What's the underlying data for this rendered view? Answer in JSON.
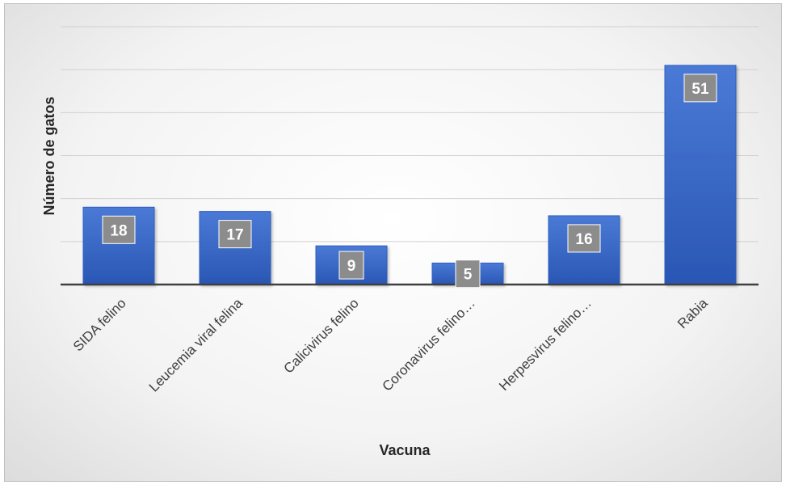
{
  "chart_data": {
    "type": "bar",
    "title": "",
    "xlabel": "Vacuna",
    "ylabel": "Número de gatos",
    "categories": [
      "SIDA felino",
      "Leucemia viral felina",
      "Calicivirus felino",
      "Coronavirus felino…",
      "Herpesvirus felino…",
      "Rabia"
    ],
    "values": [
      18,
      17,
      9,
      5,
      16,
      51
    ],
    "ylim": [
      0,
      60
    ],
    "gridlines": [
      0,
      10,
      20,
      30,
      40,
      50,
      60
    ],
    "grid": true,
    "legend": "none",
    "y_tick_labels_visible": false,
    "colors": {
      "bar_top": "#4a7ad6",
      "bar_bottom": "#2a56b4",
      "bar_edge": "#2f5fbf",
      "label_box": "#8c8c8c",
      "grid": "#d0d0d0",
      "axis": "#404040"
    }
  }
}
